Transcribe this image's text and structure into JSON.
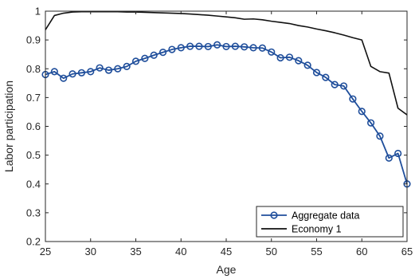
{
  "chart_data": {
    "type": "line",
    "title": "",
    "xlabel": "Age",
    "ylabel": "Labor participation",
    "xlim": [
      25,
      65
    ],
    "ylim": [
      0.2,
      1
    ],
    "xticks": [
      "25",
      "30",
      "35",
      "40",
      "45",
      "50",
      "55",
      "60",
      "65"
    ],
    "yticks": [
      "0.2",
      "0.3",
      "0.4",
      "0.5",
      "0.6",
      "0.7",
      "0.8",
      "0.9",
      "1"
    ],
    "grid": false,
    "legend_position": "bottom-right",
    "series": [
      {
        "name": "Aggregate data",
        "color": "#1f4e9b",
        "marker": "circle",
        "x": [
          25,
          26,
          27,
          28,
          29,
          30,
          31,
          32,
          33,
          34,
          35,
          36,
          37,
          38,
          39,
          40,
          41,
          42,
          43,
          44,
          45,
          46,
          47,
          48,
          49,
          50,
          51,
          52,
          53,
          54,
          55,
          56,
          57,
          58,
          59,
          60,
          61,
          62,
          63,
          64,
          65
        ],
        "y": [
          0.78,
          0.79,
          0.767,
          0.782,
          0.786,
          0.79,
          0.803,
          0.795,
          0.8,
          0.808,
          0.826,
          0.836,
          0.847,
          0.857,
          0.867,
          0.873,
          0.878,
          0.878,
          0.877,
          0.883,
          0.877,
          0.878,
          0.876,
          0.873,
          0.872,
          0.858,
          0.838,
          0.84,
          0.828,
          0.812,
          0.787,
          0.77,
          0.745,
          0.74,
          0.695,
          0.652,
          0.612,
          0.566,
          0.49,
          0.506,
          0.4
        ]
      },
      {
        "name": "Economy 1",
        "color": "#111111",
        "marker": "none",
        "x": [
          25,
          26,
          27,
          28,
          29,
          30,
          31,
          32,
          33,
          34,
          35,
          36,
          37,
          38,
          39,
          40,
          41,
          42,
          43,
          44,
          45,
          46,
          47,
          48,
          49,
          50,
          51,
          52,
          53,
          54,
          55,
          56,
          57,
          58,
          59,
          60,
          61,
          62,
          63,
          64,
          65
        ],
        "y": [
          0.935,
          0.985,
          0.993,
          0.997,
          0.998,
          0.998,
          0.998,
          0.998,
          0.998,
          0.997,
          0.997,
          0.996,
          0.995,
          0.994,
          0.993,
          0.992,
          0.99,
          0.988,
          0.986,
          0.983,
          0.98,
          0.977,
          0.972,
          0.973,
          0.97,
          0.965,
          0.961,
          0.957,
          0.95,
          0.945,
          0.938,
          0.932,
          0.925,
          0.917,
          0.908,
          0.9,
          0.808,
          0.79,
          0.785,
          0.663,
          0.64
        ]
      }
    ]
  }
}
